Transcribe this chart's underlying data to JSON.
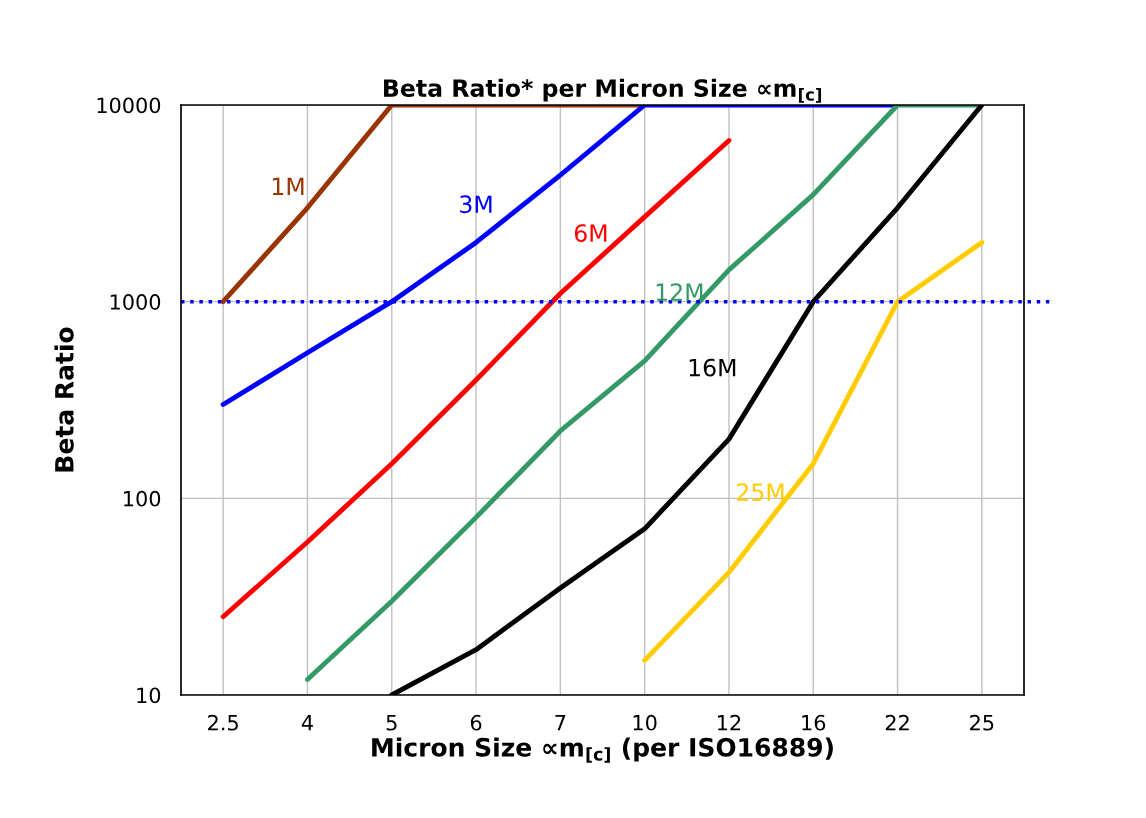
{
  "chart_data": {
    "type": "line",
    "title": "Beta Ratio* per Micron Size ∝m$_{[c]}$",
    "xlabel": "Micron Size ∝m$_{[c]}$ (per ISO16889)",
    "ylabel": "Beta Ratio",
    "categories": [
      "2.5",
      "4",
      "5",
      "6",
      "7",
      "10",
      "12",
      "16",
      "22",
      "25"
    ],
    "log": true,
    "ylim": [
      10,
      10000
    ],
    "yticks": [
      10,
      100,
      1000,
      10000
    ],
    "grid": true,
    "legend": false,
    "marker": "none",
    "line_style": "solid",
    "series": [
      {
        "name": "1M",
        "color": "#993300",
        "values": [
          1000,
          3000,
          10000,
          10000,
          10000,
          10000,
          null,
          null,
          null,
          null
        ]
      },
      {
        "name": "3M",
        "color": "#0000ff",
        "values": [
          300,
          550,
          1000,
          2000,
          4400,
          10000,
          10000,
          10000,
          10000,
          null
        ]
      },
      {
        "name": "6M",
        "color": "#ff0000",
        "values": [
          25,
          60,
          150,
          400,
          1100,
          2700,
          6600,
          null,
          null,
          null
        ]
      },
      {
        "name": "12M",
        "color": "#339966",
        "values": [
          null,
          12,
          30,
          80,
          220,
          500,
          1450,
          3500,
          10000,
          10000
        ]
      },
      {
        "name": "16M",
        "color": "#000000",
        "values": [
          null,
          null,
          10,
          17,
          35,
          70,
          200,
          1000,
          3000,
          10000
        ]
      },
      {
        "name": "25M",
        "color": "#ffcc00",
        "values": [
          null,
          null,
          null,
          null,
          null,
          15,
          42,
          150,
          1000,
          2000
        ]
      }
    ],
    "ref_lines": [
      {
        "axis": "y",
        "value": 1000,
        "color": "#0000ff",
        "line_style": "dotted"
      }
    ]
  }
}
